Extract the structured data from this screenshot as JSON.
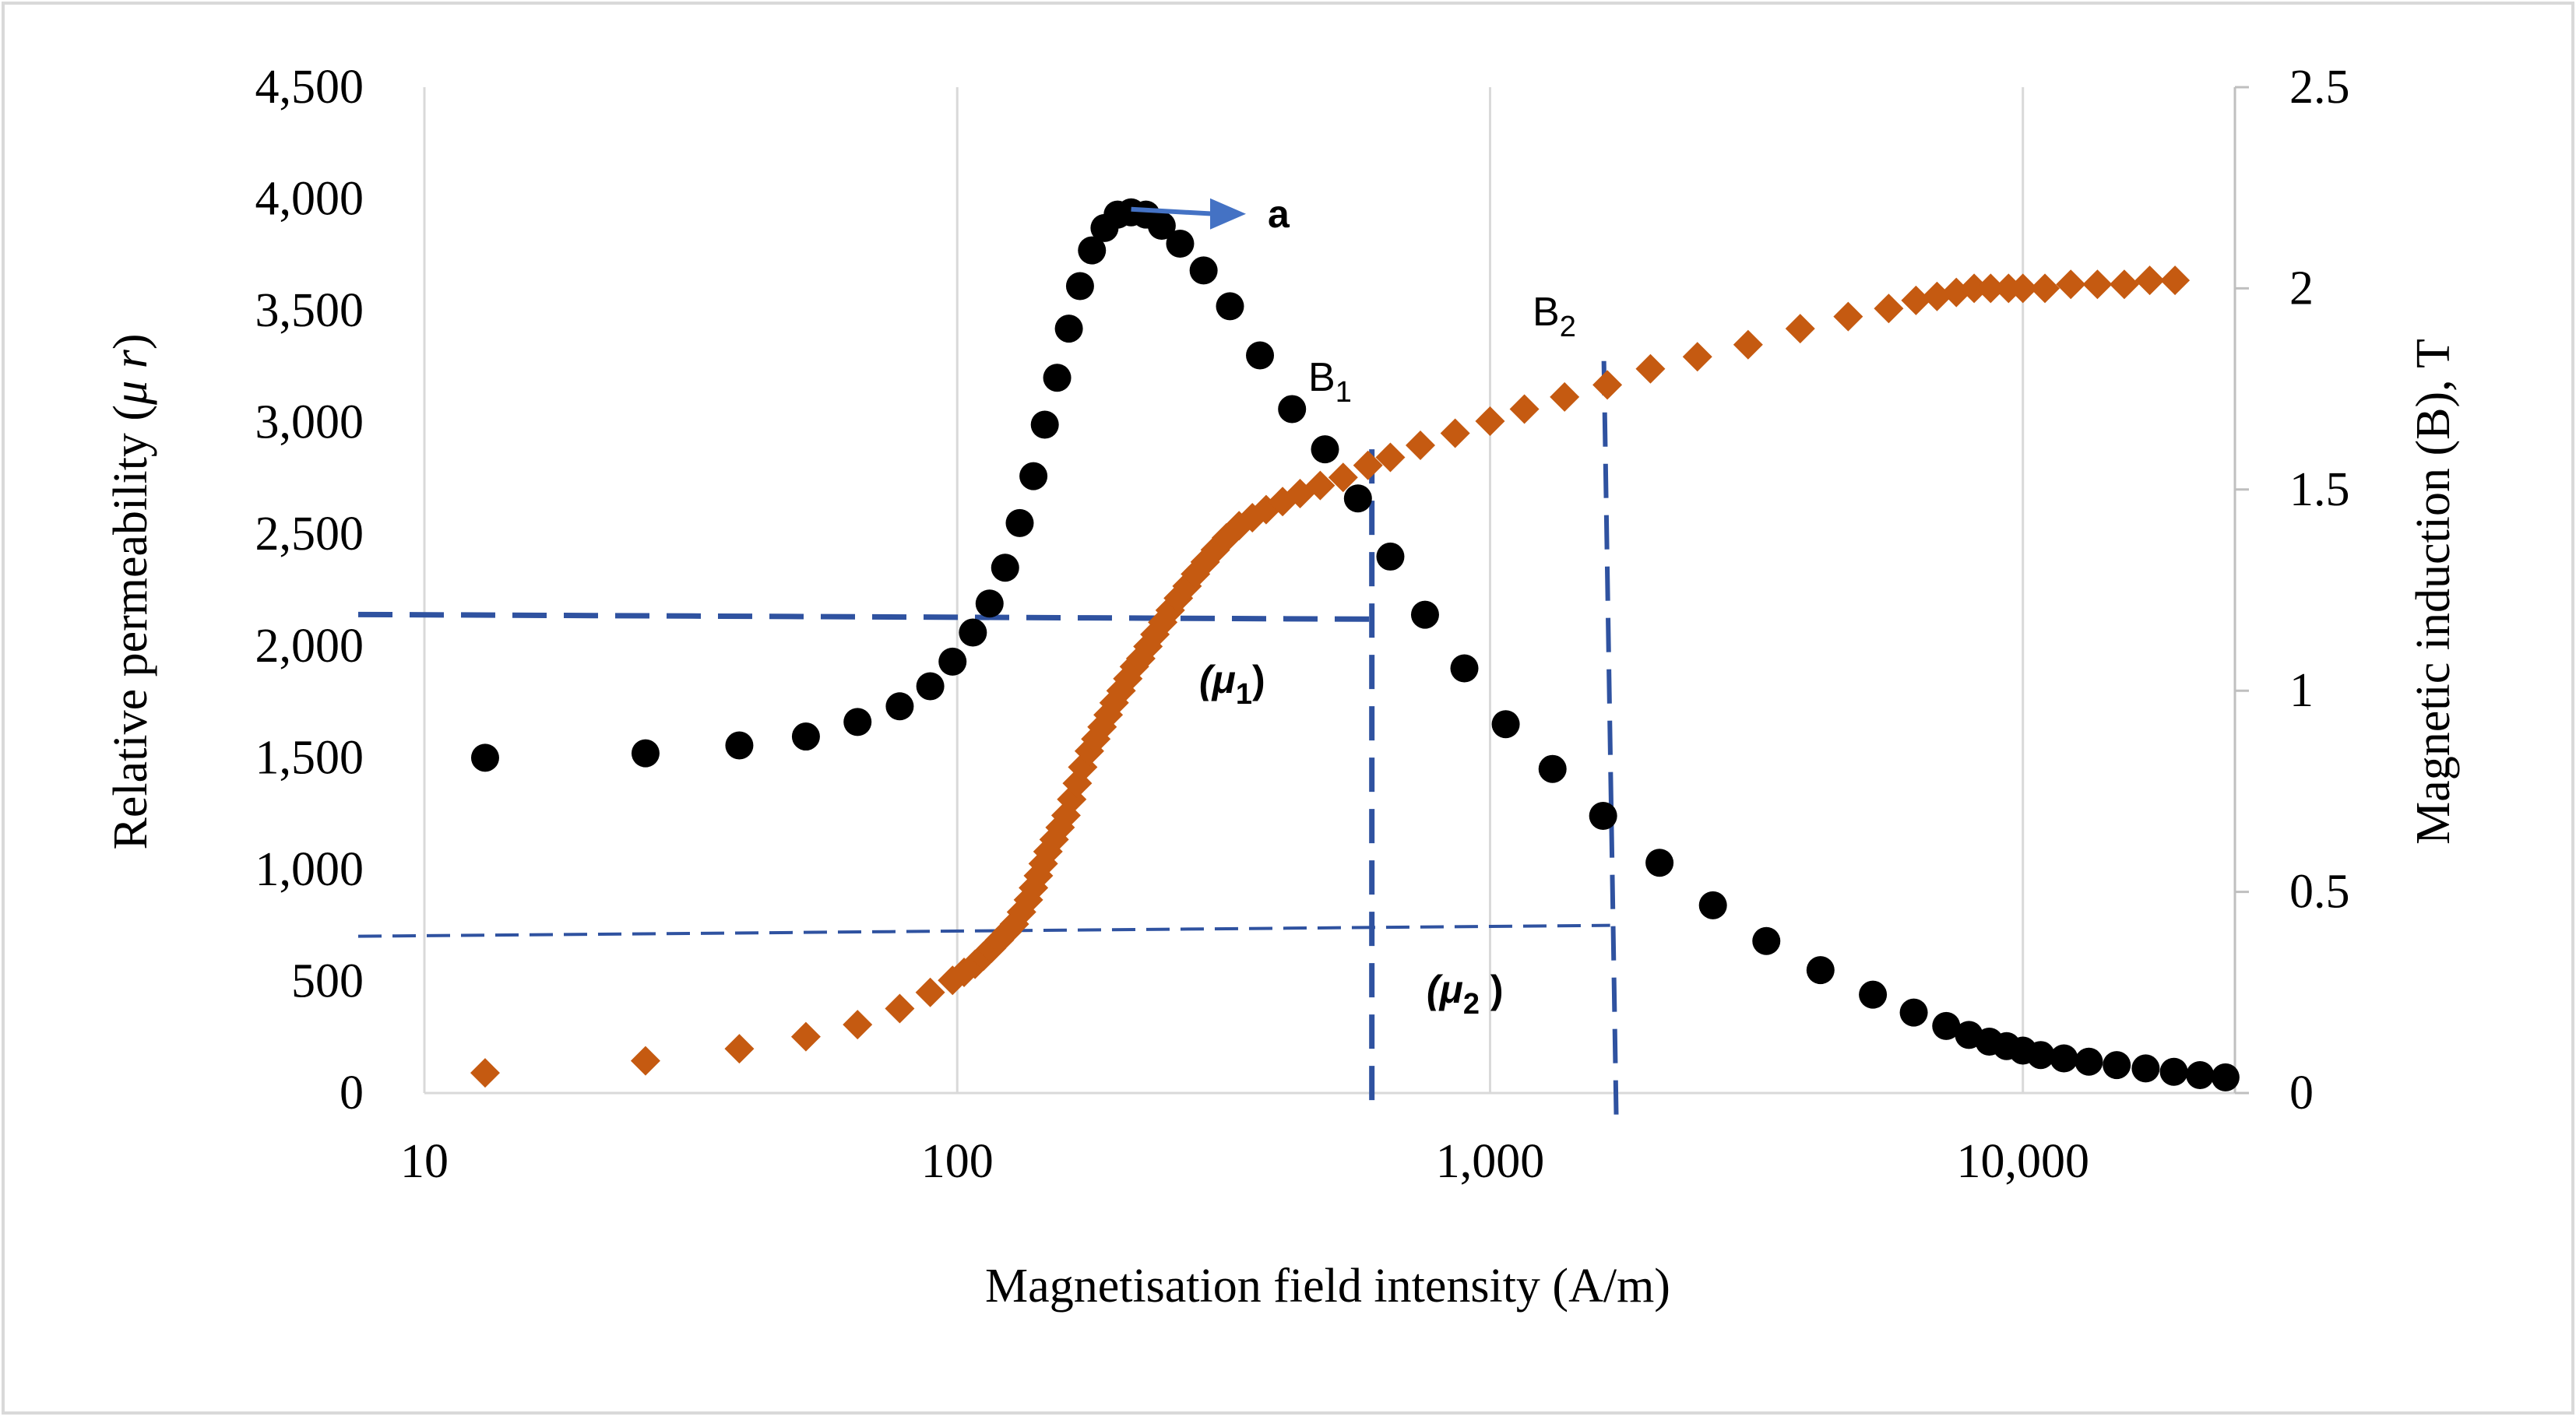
{
  "chart_data": {
    "type": "scatter",
    "xlabel": "Magnetisation field intensity (A/m)",
    "ylabel_left": "Relative permeability (",
    "ylabel_left_mu": "μ r",
    "ylabel_left_close": ")",
    "ylabel_right": "Magnetic induction (B), T",
    "x_scale": "log",
    "xlim": [
      10,
      25000
    ],
    "ylim_left": [
      0,
      4500
    ],
    "ylim_right": [
      0,
      2.5
    ],
    "x_ticks": [
      {
        "value": 10,
        "label": "10"
      },
      {
        "value": 100,
        "label": "100"
      },
      {
        "value": 1000,
        "label": "1,000"
      },
      {
        "value": 10000,
        "label": "10,000"
      }
    ],
    "y_left_ticks": [
      {
        "value": 0,
        "label": "0"
      },
      {
        "value": 500,
        "label": "500"
      },
      {
        "value": 1000,
        "label": "1,000"
      },
      {
        "value": 1500,
        "label": "1,500"
      },
      {
        "value": 2000,
        "label": "2,000"
      },
      {
        "value": 2500,
        "label": "2,500"
      },
      {
        "value": 3000,
        "label": "3,000"
      },
      {
        "value": 3500,
        "label": "3,500"
      },
      {
        "value": 4000,
        "label": "4,000"
      },
      {
        "value": 4500,
        "label": "4,500"
      }
    ],
    "y_right_ticks": [
      {
        "value": 0,
        "label": "0"
      },
      {
        "value": 0.5,
        "label": "0.5"
      },
      {
        "value": 1,
        "label": "1"
      },
      {
        "value": 1.5,
        "label": "1.5"
      },
      {
        "value": 2,
        "label": "2"
      },
      {
        "value": 2.5,
        "label": "2.5"
      }
    ],
    "grid": "vertical",
    "series": [
      {
        "axis": "left",
        "marker": "circle",
        "color": "#000000",
        "x": [
          13,
          26,
          39,
          52,
          65,
          78,
          89,
          98,
          107,
          115,
          123,
          131,
          139,
          146,
          154,
          162,
          170,
          179,
          189,
          200,
          212,
          226,
          242,
          262,
          290,
          325,
          370,
          425,
          490,
          565,
          650,
          755,
          895,
          1070,
          1310,
          1630,
          2080,
          2620,
          3300,
          4170,
          5230,
          6240,
          7180,
          7920,
          8650,
          9320,
          10000,
          10800,
          11940,
          13300,
          15000,
          17000,
          19200,
          21500,
          24000
        ],
        "y": [
          1500,
          1520,
          1555,
          1595,
          1660,
          1730,
          1820,
          1930,
          2060,
          2190,
          2350,
          2550,
          2760,
          2990,
          3200,
          3420,
          3610,
          3770,
          3870,
          3930,
          3940,
          3930,
          3880,
          3800,
          3680,
          3520,
          3300,
          3060,
          2880,
          2660,
          2400,
          2140,
          1900,
          1650,
          1450,
          1240,
          1030,
          840,
          680,
          550,
          440,
          360,
          300,
          260,
          230,
          210,
          190,
          170,
          155,
          140,
          125,
          110,
          95,
          80,
          70
        ]
      },
      {
        "axis": "right",
        "marker": "diamond",
        "color": "#C55A11",
        "x": [
          13,
          26,
          39,
          52,
          65,
          78,
          89,
          98,
          103,
          108,
          112,
          116,
          120,
          124,
          128,
          132,
          136,
          139,
          142,
          145,
          148,
          152,
          156,
          160,
          164,
          168,
          172,
          177,
          182,
          187,
          192,
          197,
          203,
          209,
          215,
          221,
          228,
          235,
          243,
          251,
          260,
          270,
          280,
          292,
          305,
          320,
          338,
          358,
          380,
          408,
          440,
          480,
          530,
          590,
          650,
          740,
          860,
          1000,
          1160,
          1380,
          1660,
          2000,
          2450,
          3050,
          3820,
          4700,
          5600,
          6300,
          6900,
          7500,
          8100,
          8700,
          9400,
          10000,
          11000,
          12300,
          13800,
          15500,
          17300,
          19300
        ],
        "y": [
          0.05,
          0.08,
          0.11,
          0.14,
          0.17,
          0.21,
          0.25,
          0.28,
          0.3,
          0.32,
          0.34,
          0.36,
          0.38,
          0.4,
          0.42,
          0.45,
          0.48,
          0.51,
          0.54,
          0.57,
          0.6,
          0.63,
          0.66,
          0.69,
          0.73,
          0.77,
          0.81,
          0.85,
          0.88,
          0.91,
          0.94,
          0.97,
          1.0,
          1.03,
          1.06,
          1.08,
          1.11,
          1.14,
          1.17,
          1.2,
          1.23,
          1.26,
          1.29,
          1.32,
          1.35,
          1.38,
          1.41,
          1.43,
          1.45,
          1.47,
          1.49,
          1.51,
          1.53,
          1.56,
          1.58,
          1.61,
          1.64,
          1.67,
          1.7,
          1.73,
          1.76,
          1.8,
          1.83,
          1.86,
          1.9,
          1.93,
          1.95,
          1.97,
          1.98,
          1.99,
          2.0,
          2.0,
          2.0,
          2.0,
          2.0,
          2.01,
          2.01,
          2.01,
          2.02,
          2.02
        ]
      }
    ],
    "annotations": {
      "peak_label": "a",
      "b1_label": "B",
      "b1_sub": "1",
      "b2_label": "B",
      "b2_sub": "2",
      "mu1_label": "(μ",
      "mu1_sub": "1",
      "mu1_close": ")",
      "mu2_label": "(μ",
      "mu2_sub": "2",
      "mu2_close": " )",
      "b1_x": 600,
      "b1_y": 1.6,
      "b2_x": 1680,
      "b2_y": 1.8,
      "mu1_y": 2120,
      "mu2_y": 750,
      "peak_x": 205,
      "peak_y": 3940,
      "arrow_color": "#4472C4",
      "guide_color": "#2F52A0"
    }
  }
}
